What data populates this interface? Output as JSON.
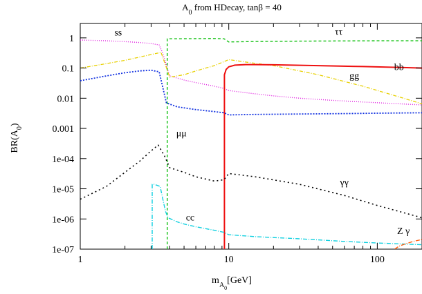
{
  "chart_data": {
    "type": "line",
    "title": "A₀ from HDecay, tanβ = 40",
    "xlabel": "m_A0[GeV]",
    "ylabel": "BR(A₀)",
    "x_scale": "log",
    "y_scale": "log",
    "xlim": [
      1,
      200
    ],
    "ylim": [
      1e-07,
      3
    ],
    "grid": false,
    "x_ticks": [
      {
        "value": 1,
        "label": "1"
      },
      {
        "value": 10,
        "label": "10"
      },
      {
        "value": 100,
        "label": "100"
      }
    ],
    "y_ticks": [
      {
        "value": 1,
        "label": "1"
      },
      {
        "value": 0.1,
        "label": "0.1"
      },
      {
        "value": 0.01,
        "label": "0.01"
      },
      {
        "value": 0.001,
        "label": "0.001"
      },
      {
        "value": 0.0001,
        "label": "1e-04"
      },
      {
        "value": 1e-05,
        "label": "1e-05"
      },
      {
        "value": 1e-06,
        "label": "1e-06"
      },
      {
        "value": 1e-07,
        "label": "1e-07"
      }
    ],
    "series": [
      {
        "name": "ss",
        "color": "#e020e0",
        "dash": "1,2",
        "width": 1.4,
        "label_at": [
          1.8,
          1.2
        ],
        "x": [
          1,
          1.5,
          2,
          2.5,
          3,
          3.4,
          3.6,
          4,
          5,
          6,
          8,
          9.3,
          10,
          15,
          20,
          30,
          50,
          80,
          120,
          200
        ],
        "y": [
          0.85,
          0.8,
          0.75,
          0.7,
          0.65,
          0.58,
          0.3,
          0.055,
          0.04,
          0.033,
          0.025,
          0.021,
          0.018,
          0.014,
          0.012,
          0.01,
          0.0085,
          0.0075,
          0.0068,
          0.006
        ]
      },
      {
        "name": "ττ",
        "color": "#10c010",
        "dash": "4,3",
        "width": 1.4,
        "label_at": [
          55,
          1.25
        ],
        "x": [
          3.85,
          3.85,
          4.5,
          6,
          8,
          9.3,
          10,
          15,
          30,
          60,
          100,
          200
        ],
        "y": [
          1e-07,
          0.93,
          0.93,
          0.94,
          0.95,
          0.93,
          0.73,
          0.76,
          0.78,
          0.79,
          0.8,
          0.8
        ]
      },
      {
        "name": "gg",
        "color": "#e8d000",
        "dash": "5,2,1,2",
        "width": 1.3,
        "label_at": [
          70,
          0.045
        ],
        "x": [
          1,
          1.5,
          2,
          2.5,
          3,
          3.5,
          4,
          5,
          6,
          8,
          10,
          14,
          20,
          40,
          80,
          150,
          200
        ],
        "y": [
          0.1,
          0.14,
          0.18,
          0.23,
          0.28,
          0.33,
          0.05,
          0.06,
          0.08,
          0.12,
          0.19,
          0.15,
          0.12,
          0.06,
          0.025,
          0.01,
          0.0065
        ]
      },
      {
        "name": "bb",
        "color": "#ee1010",
        "dash": "",
        "width": 2.0,
        "label_at": [
          140,
          0.085
        ],
        "x": [
          9.35,
          9.35,
          9.6,
          10,
          11,
          13,
          15,
          20,
          40,
          80,
          150,
          200
        ],
        "y": [
          1e-07,
          0.06,
          0.09,
          0.11,
          0.125,
          0.13,
          0.13,
          0.128,
          0.12,
          0.112,
          0.104,
          0.1
        ]
      },
      {
        "name": "μμ",
        "color": "#1030e0",
        "dash": "2,2",
        "width": 1.8,
        "label_at": [
          4.8,
          0.00055
        ],
        "x": [
          1,
          1.5,
          2,
          2.5,
          3,
          3.4,
          3.8,
          4.5,
          6,
          8,
          9.3,
          10,
          15,
          30,
          60,
          100,
          200
        ],
        "y": [
          0.038,
          0.055,
          0.07,
          0.08,
          0.085,
          0.075,
          0.007,
          0.0052,
          0.0042,
          0.0036,
          0.0033,
          0.0028,
          0.0029,
          0.003,
          0.0031,
          0.0032,
          0.0033
        ]
      },
      {
        "name": "γγ",
        "color": "#000000",
        "dash": "2,4",
        "width": 1.6,
        "label_at": [
          60,
          1.3e-05
        ],
        "x": [
          1,
          1.5,
          2,
          2.5,
          3,
          3.35,
          3.7,
          4,
          5,
          6,
          8,
          9.3,
          10,
          15,
          30,
          60,
          100,
          200
        ],
        "y": [
          4.5e-06,
          1.2e-05,
          3.5e-05,
          8e-05,
          0.00018,
          0.00028,
          0.00012,
          5e-05,
          3.5e-05,
          2.5e-05,
          1.8e-05,
          2e-05,
          3.2e-05,
          2.5e-05,
          1.4e-05,
          6e-06,
          2.8e-06,
          1.1e-06
        ]
      },
      {
        "name": "cc",
        "color": "#10d0e0",
        "dash": "6,2,1,2",
        "width": 1.4,
        "label_at": [
          5.5,
          9e-07
        ],
        "x": [
          3.05,
          3.05,
          3.15,
          3.45,
          3.6,
          3.75,
          3.9,
          4.5,
          5,
          6,
          8,
          9.3,
          10,
          15,
          30,
          60,
          100,
          200
        ],
        "y": [
          1e-07,
          1.4e-05,
          1.4e-05,
          1.2e-05,
          4.5e-06,
          1.8e-06,
          1.1e-06,
          8e-07,
          6.8e-07,
          5.5e-07,
          4.2e-07,
          3.6e-07,
          3e-07,
          2.6e-07,
          2.2e-07,
          1.8e-07,
          1.6e-07,
          1.4e-07
        ]
      },
      {
        "name": "Z γ",
        "color": "#ff6010",
        "dash": "6,2,1,2",
        "width": 1.4,
        "label_at": [
          150,
          3.2e-07
        ],
        "x": [
          131,
          140,
          155,
          175,
          200
        ],
        "y": [
          1e-07,
          1.25e-07,
          1.5e-07,
          1.8e-07,
          2.1e-07
        ]
      }
    ]
  }
}
